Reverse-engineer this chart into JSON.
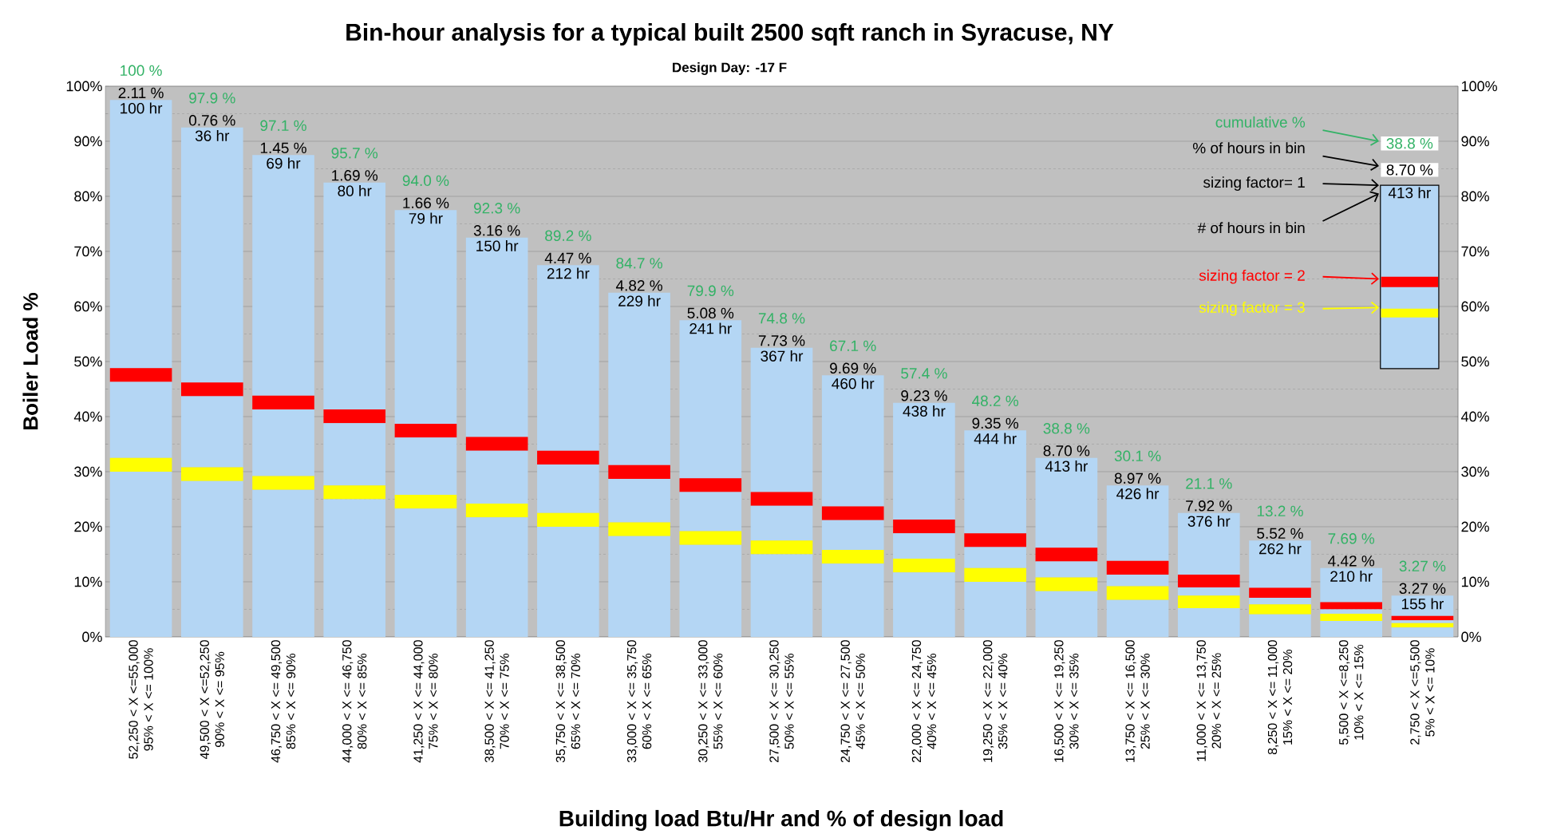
{
  "chart_data": {
    "type": "bar",
    "title": "Bin-hour analysis for a typical built 2500 sqft ranch in Syracuse, NY",
    "subtitle": "Design Day: -17 F",
    "xlabel": "Building load Btu/Hr and % of design load",
    "ylabel": "Boiler  Load %",
    "categories": [
      "52,250 < X <=55,000\n95% < X <= 100%",
      "49,500 < X <=52,250\n90% < X <= 95%",
      "46,750 < X <= 49,500\n85% < X <= 90%",
      "44,000 < X <= 46,750\n80% < X <= 85%",
      "41,250 < X <= 44,000\n75% < X <= 80%",
      "38,500 < X <= 41,250\n70% < X <= 75%",
      "35,750 < X <= 38,500\n65% < X <= 70%",
      "33,000 < X <= 35,750\n60% < X <= 65%",
      "30,250 < X <= 33,000\n55% < X <= 60%",
      "27,500 < X <= 30,250\n50% < X <= 55%",
      "24,750 < X <= 27,500\n45% < X <= 50%",
      "22,000 < X <= 24,750\n40% < X <= 45%",
      "19,250 < X <= 22,000\n35% < X <= 40%",
      "16,500 < X <= 19,250\n30% < X <= 35%",
      "13,750 < X <= 16,500\n25% < X <= 30%",
      "11,000 < X <= 13,750\n20% < X <= 25%",
      "8,250 < X <= 11,000\n15% < X <= 20%",
      "5,500 < X <=8,250\n10% < X <= 15%",
      "2,750 < X <=5,500\n5% < X <= 10%"
    ],
    "stacked": true,
    "series": [
      {
        "color": "#b4d6f4",
        "values": [
          30,
          28.3,
          26.7,
          25,
          23.3,
          21.7,
          20,
          18.3,
          16.7,
          15,
          13.3,
          11.7,
          10,
          8.3,
          6.7,
          5.2,
          4.1,
          2.9,
          1.7
        ]
      },
      {
        "name": "sizing factor = 3",
        "color": "#ffff00",
        "values": [
          2.5,
          2.5,
          2.5,
          2.5,
          2.5,
          2.5,
          2.5,
          2.5,
          2.5,
          2.5,
          2.5,
          2.5,
          2.5,
          2.5,
          2.5,
          2.3,
          1.8,
          1.3,
          0.8
        ]
      },
      {
        "color": "#b4d6f4",
        "values": [
          13.8,
          12.9,
          12.1,
          11.3,
          10.4,
          9.6,
          8.8,
          7.9,
          7.1,
          6.3,
          5.4,
          4.6,
          3.8,
          2.9,
          2.1,
          1.5,
          1.2,
          0.8,
          0.5
        ]
      },
      {
        "name": "sizing factor = 2",
        "color": "#ff0000",
        "values": [
          2.5,
          2.5,
          2.5,
          2.5,
          2.5,
          2.5,
          2.5,
          2.5,
          2.5,
          2.5,
          2.5,
          2.5,
          2.5,
          2.5,
          2.5,
          2.3,
          1.8,
          1.3,
          0.8
        ]
      },
      {
        "color": "#b4d6f4",
        "values": [
          48.7,
          46.3,
          43.7,
          41.2,
          38.8,
          36.2,
          33.7,
          31.3,
          28.7,
          26.2,
          23.8,
          21.2,
          18.7,
          16.3,
          13.7,
          11.2,
          8.6,
          6.2,
          3.7
        ]
      }
    ],
    "ylim": [
      0,
      100
    ],
    "yticks": [
      {
        "value": 0,
        "label": "0%"
      },
      {
        "value": 5,
        "label": null
      },
      {
        "value": 10,
        "label": "10%"
      },
      {
        "value": 15,
        "label": null
      },
      {
        "value": 20,
        "label": "20%"
      },
      {
        "value": 25,
        "label": null
      },
      {
        "value": 30,
        "label": "30%"
      },
      {
        "value": 35,
        "label": null
      },
      {
        "value": 40,
        "label": "40%"
      },
      {
        "value": 45,
        "label": null
      },
      {
        "value": 50,
        "label": "50%"
      },
      {
        "value": 55,
        "label": null
      },
      {
        "value": 60,
        "label": "60%"
      },
      {
        "value": 65,
        "label": null
      },
      {
        "value": 70,
        "label": "70%"
      },
      {
        "value": 75,
        "label": null
      },
      {
        "value": 80,
        "label": "80%"
      },
      {
        "value": 85,
        "label": null
      },
      {
        "value": 90,
        "label": "90%"
      },
      {
        "value": 95,
        "label": null
      },
      {
        "value": 100,
        "label": "100%"
      }
    ],
    "y2lim": [
      0,
      100
    ],
    "y2ticks": [
      {
        "value": 0,
        "label": "0%"
      },
      {
        "value": 10,
        "label": "10%"
      },
      {
        "value": 20,
        "label": "20%"
      },
      {
        "value": 30,
        "label": "30%"
      },
      {
        "value": 40,
        "label": "40%"
      },
      {
        "value": 50,
        "label": "50%"
      },
      {
        "value": 60,
        "label": "60%"
      },
      {
        "value": 70,
        "label": "70%"
      },
      {
        "value": 80,
        "label": "80%"
      },
      {
        "value": 90,
        "label": "90%"
      },
      {
        "value": 100,
        "label": "100%"
      }
    ],
    "grid": "y",
    "legend": "right",
    "annotations": [
      {
        "text": "100 hr",
        "x": "52,250 < X <=55,000\n95% < X <= 100%",
        "y": 97.5
      },
      {
        "text": "2.11 %",
        "x": "52,250 < X <=55,000\n95% < X <= 100%",
        "y": 97.5
      },
      {
        "text": "100 %",
        "x": "52,250 < X <=55,000\n95% < X <= 100%",
        "y": 97.5
      },
      {
        "text": "36 hr",
        "x": "49,500 < X <=52,250\n90% < X <= 95%",
        "y": 92.5
      },
      {
        "text": "0.76 %",
        "x": "49,500 < X <=52,250\n90% < X <= 95%",
        "y": 92.5
      },
      {
        "text": "97.9 %",
        "x": "49,500 < X <=52,250\n90% < X <= 95%",
        "y": 92.5
      },
      {
        "text": "69 hr",
        "x": "46,750 < X <= 49,500\n85% < X <= 90%",
        "y": 87.5
      },
      {
        "text": "1.45 %",
        "x": "46,750 < X <= 49,500\n85% < X <= 90%",
        "y": 87.5
      },
      {
        "text": "97.1 %",
        "x": "46,750 < X <= 49,500\n85% < X <= 90%",
        "y": 87.5
      },
      {
        "text": "80 hr",
        "x": "44,000 < X <= 46,750\n80% < X <= 85%",
        "y": 82.5
      },
      {
        "text": "1.69 %",
        "x": "44,000 < X <= 46,750\n80% < X <= 85%",
        "y": 82.5
      },
      {
        "text": "95.7 %",
        "x": "44,000 < X <= 46,750\n80% < X <= 85%",
        "y": 82.5
      },
      {
        "text": "79 hr",
        "x": "41,250 < X <= 44,000\n75% < X <= 80%",
        "y": 77.5
      },
      {
        "text": "1.66 %",
        "x": "41,250 < X <= 44,000\n75% < X <= 80%",
        "y": 77.5
      },
      {
        "text": "94.0 %",
        "x": "41,250 < X <= 44,000\n75% < X <= 80%",
        "y": 77.5
      },
      {
        "text": "150 hr",
        "x": "38,500 < X <= 41,250\n70% < X <= 75%",
        "y": 72.5
      },
      {
        "text": "3.16 %",
        "x": "38,500 < X <= 41,250\n70% < X <= 75%",
        "y": 72.5
      },
      {
        "text": "92.3 %",
        "x": "38,500 < X <= 41,250\n70% < X <= 75%",
        "y": 72.5
      },
      {
        "text": "212 hr",
        "x": "35,750 < X <= 38,500\n65% < X <= 70%",
        "y": 67.5
      },
      {
        "text": "4.47 %",
        "x": "35,750 < X <= 38,500\n65% < X <= 70%",
        "y": 67.5
      },
      {
        "text": "89.2 %",
        "x": "35,750 < X <= 38,500\n65% < X <= 70%",
        "y": 67.5
      },
      {
        "text": "229 hr",
        "x": "33,000 < X <= 35,750\n60% < X <= 65%",
        "y": 62.5
      },
      {
        "text": "4.82 %",
        "x": "33,000 < X <= 35,750\n60% < X <= 65%",
        "y": 62.5
      },
      {
        "text": "84.7 %",
        "x": "33,000 < X <= 35,750\n60% < X <= 65%",
        "y": 62.5
      },
      {
        "text": "241 hr",
        "x": "30,250 < X <= 33,000\n55% < X <= 60%",
        "y": 57.5
      },
      {
        "text": "5.08 %",
        "x": "30,250 < X <= 33,000\n55% < X <= 60%",
        "y": 57.5
      },
      {
        "text": "79.9 %",
        "x": "30,250 < X <= 33,000\n55% < X <= 60%",
        "y": 57.5
      },
      {
        "text": "367 hr",
        "x": "27,500 < X <= 30,250\n50% < X <= 55%",
        "y": 52.5
      },
      {
        "text": "7.73 %",
        "x": "27,500 < X <= 30,250\n50% < X <= 55%",
        "y": 52.5
      },
      {
        "text": "74.8 %",
        "x": "27,500 < X <= 30,250\n50% < X <= 55%",
        "y": 52.5
      },
      {
        "text": "460 hr",
        "x": "24,750 < X <= 27,500\n45% < X <= 50%",
        "y": 47.5
      },
      {
        "text": "9.69 %",
        "x": "24,750 < X <= 27,500\n45% < X <= 50%",
        "y": 47.5
      },
      {
        "text": "67.1 %",
        "x": "24,750 < X <= 27,500\n45% < X <= 50%",
        "y": 47.5
      },
      {
        "text": "438 hr",
        "x": "22,000 < X <= 24,750\n40% < X <= 45%",
        "y": 42.5
      },
      {
        "text": "9.23 %",
        "x": "22,000 < X <= 24,750\n40% < X <= 45%",
        "y": 42.5
      },
      {
        "text": "57.4 %",
        "x": "22,000 < X <= 24,750\n40% < X <= 45%",
        "y": 42.5
      },
      {
        "text": "444 hr",
        "x": "19,250 < X <= 22,000\n35% < X <= 40%",
        "y": 37.5
      },
      {
        "text": "9.35 %",
        "x": "19,250 < X <= 22,000\n35% < X <= 40%",
        "y": 37.5
      },
      {
        "text": "48.2 %",
        "x": "19,250 < X <= 22,000\n35% < X <= 40%",
        "y": 37.5
      },
      {
        "text": "413 hr",
        "x": "16,500 < X <= 19,250\n30% < X <= 35%",
        "y": 32.5
      },
      {
        "text": "8.70 %",
        "x": "16,500 < X <= 19,250\n30% < X <= 35%",
        "y": 32.5
      },
      {
        "text": "38.8 %",
        "x": "16,500 < X <= 19,250\n30% < X <= 35%",
        "y": 32.5
      },
      {
        "text": "426 hr",
        "x": "13,750 < X <= 16,500\n25% < X <= 30%",
        "y": 27.5
      },
      {
        "text": "8.97 %",
        "x": "13,750 < X <= 16,500\n25% < X <= 30%",
        "y": 27.5
      },
      {
        "text": "30.1 %",
        "x": "13,750 < X <= 16,500\n25% < X <= 30%",
        "y": 27.5
      },
      {
        "text": "376 hr",
        "x": "11,000 < X <= 13,750\n20% < X <= 25%",
        "y": 22.5
      },
      {
        "text": "7.92 %",
        "x": "11,000 < X <= 13,750\n20% < X <= 25%",
        "y": 22.5
      },
      {
        "text": "21.1 %",
        "x": "11,000 < X <= 13,750\n20% < X <= 25%",
        "y": 22.5
      },
      {
        "text": "262 hr",
        "x": "8,250 < X <= 11,000\n15% < X <= 20%",
        "y": 17.5
      },
      {
        "text": "5.52 %",
        "x": "8,250 < X <= 11,000\n15% < X <= 20%",
        "y": 17.5
      },
      {
        "text": "13.2 %",
        "x": "8,250 < X <= 11,000\n15% < X <= 20%",
        "y": 17.5
      },
      {
        "text": "210 hr",
        "x": "5,500 < X <=8,250\n10% < X <= 15%",
        "y": 12.5
      },
      {
        "text": "4.42 %",
        "x": "5,500 < X <=8,250\n10% < X <= 15%",
        "y": 12.5
      },
      {
        "text": "7.69 %",
        "x": "5,500 < X <=8,250\n10% < X <= 15%",
        "y": 12.5
      },
      {
        "text": "155 hr",
        "x": "2,750 < X <=5,500\n5% < X <= 10%",
        "y": 7.5
      },
      {
        "text": "3.27 %",
        "x": "2,750 < X <=5,500\n5% < X <= 10%",
        "y": 7.5
      },
      {
        "text": "3.27 %",
        "x": "2,750 < X <=5,500\n5% < X <= 10%",
        "y": 7.5
      },
      "cumulative %",
      "% of hours  in bin",
      "sizing factor= 1",
      "# of hours  in bin",
      "38.8 %",
      "8.70 %",
      "413 hr"
    ]
  }
}
